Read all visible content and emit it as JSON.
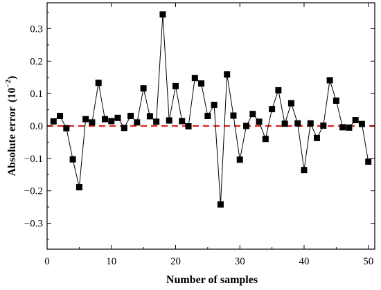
{
  "chart_data": {
    "type": "line",
    "xlabel": "Number of samples",
    "ylabel_main": "Absolute error",
    "ylabel_unit_base": "10",
    "ylabel_unit_exp": "−2",
    "xlim": [
      0,
      51
    ],
    "ylim": [
      -0.38,
      0.38
    ],
    "x_ticks": [
      0,
      10,
      20,
      30,
      40,
      50
    ],
    "y_ticks": [
      -0.3,
      -0.2,
      -0.1,
      0.0,
      0.1,
      0.2,
      0.3
    ],
    "y_tick_labels": [
      "−0.3",
      "−0.2",
      "−0.1",
      "0.0",
      "0.1",
      "0.2",
      "0.3"
    ],
    "grid": false,
    "reference_line": {
      "y": 0,
      "style": "dashed",
      "color": "#e0201b"
    },
    "series": [
      {
        "color": "#000000",
        "marker": "square",
        "x": [
          1,
          2,
          3,
          4,
          5,
          6,
          7,
          8,
          9,
          10,
          11,
          12,
          13,
          14,
          15,
          16,
          17,
          18,
          19,
          20,
          21,
          22,
          23,
          24,
          25,
          26,
          27,
          28,
          29,
          30,
          31,
          32,
          33,
          34,
          35,
          36,
          37,
          38,
          39,
          40,
          41,
          42,
          43,
          44,
          45,
          46,
          47,
          48,
          49,
          50
        ],
        "y": [
          0.014,
          0.031,
          -0.007,
          -0.103,
          -0.189,
          0.021,
          0.011,
          0.133,
          0.021,
          0.015,
          0.025,
          -0.006,
          0.031,
          0.011,
          0.116,
          0.03,
          0.013,
          0.344,
          0.017,
          0.123,
          0.015,
          -0.001,
          0.148,
          0.131,
          0.031,
          0.065,
          -0.242,
          0.159,
          0.032,
          -0.104,
          0.0,
          0.037,
          0.013,
          -0.04,
          0.052,
          0.11,
          0.007,
          0.07,
          0.008,
          -0.136,
          0.008,
          -0.037,
          0.001,
          0.141,
          0.078,
          -0.004,
          -0.005,
          0.018,
          0.006,
          -0.11
        ]
      }
    ]
  }
}
